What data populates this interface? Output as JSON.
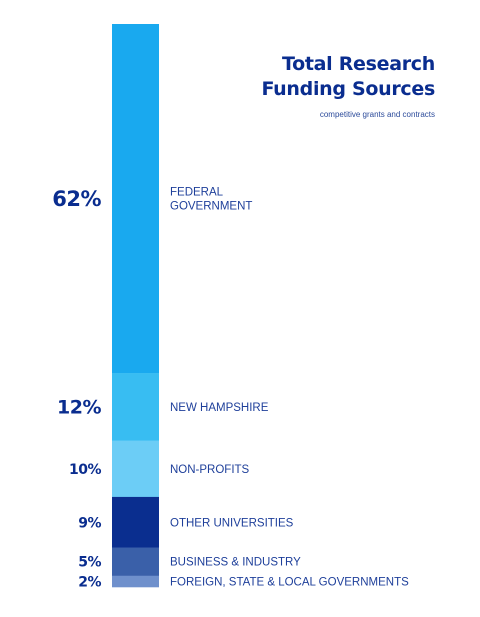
{
  "colors": {
    "title": "#0a2d8f",
    "percent": "#0a2d8f",
    "label": "#1e3f9a",
    "subtitle": "#2b4a9a"
  },
  "chart_data": {
    "type": "bar",
    "orientation": "stacked-vertical",
    "title_lines": [
      "Total Research",
      "Funding Sources"
    ],
    "subtitle": "competitive grants and contracts",
    "ylim": [
      0,
      100
    ],
    "grid": false,
    "legend": "none",
    "segments": [
      {
        "label_lines": [
          "FEDERAL",
          "GOVERNMENT"
        ],
        "value": 62,
        "display": "62%",
        "color": "#19a9ef"
      },
      {
        "label_lines": [
          "NEW HAMPSHIRE"
        ],
        "value": 12,
        "display": "12%",
        "color": "#38bdf2"
      },
      {
        "label_lines": [
          "NON-PROFITS"
        ],
        "value": 10,
        "display": "10%",
        "color": "#6ccdf6"
      },
      {
        "label_lines": [
          "OTHER UNIVERSITIES"
        ],
        "value": 9,
        "display": "9%",
        "color": "#0a2e8f"
      },
      {
        "label_lines": [
          "BUSINESS & INDUSTRY"
        ],
        "value": 5,
        "display": "5%",
        "color": "#3a60a9"
      },
      {
        "label_lines": [
          "FOREIGN, STATE & LOCAL GOVERNMENTS"
        ],
        "value": 2,
        "display": "2%",
        "color": "#6f90cc"
      }
    ]
  }
}
